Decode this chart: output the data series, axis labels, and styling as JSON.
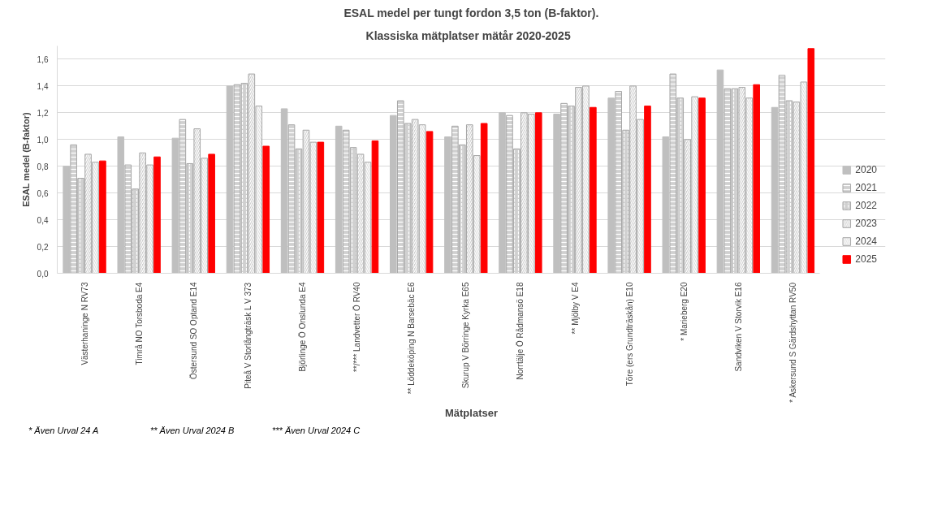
{
  "chart_data": {
    "type": "bar",
    "title": "ESAL medel per tungt fordon 3,5 ton (B-faktor).",
    "subtitle": "Klassiska  mätplatser  mätår 2020-2025",
    "xlabel": "Mätplatser",
    "ylabel": "ESAL medel (B-faktor)",
    "categories": [
      "Västerhaninge N RV73",
      "Timrå NO Torsboda E4",
      "Östersund SO Optand E14",
      "Piteå V Storlångträsk L V 373",
      "Björlinge Ö Onslunda E4",
      "**/*** Landvetter Ö RV40",
      "** Löddeköping N Barsebäc E6",
      "Skurup V Börringe Kyrka E65",
      "Norrtälje Ö Rådmansö E18",
      "** Mjölby V E4",
      "Töre (ers Grundträskån) E10",
      "* Marieberg E20",
      "Sandviken V Storvik E16",
      "* Askersund S Gärdshyttan RV50"
    ],
    "series": [
      {
        "name": "2020",
        "color": "#bfbfbf",
        "values": [
          0.8,
          1.02,
          1.01,
          1.4,
          1.23,
          1.1,
          1.18,
          1.02,
          1.2,
          1.19,
          1.31,
          1.02,
          1.52,
          1.24
        ]
      },
      {
        "name": "2021",
        "color": "#d0d0d0",
        "values": [
          0.96,
          0.81,
          1.15,
          1.41,
          1.11,
          1.07,
          1.29,
          1.1,
          1.18,
          1.27,
          1.36,
          1.49,
          1.38,
          1.48
        ]
      },
      {
        "name": "2022",
        "color": "#d0d0d0",
        "values": [
          0.71,
          0.63,
          0.82,
          1.42,
          0.93,
          0.94,
          1.12,
          0.96,
          0.93,
          1.25,
          1.07,
          1.31,
          1.38,
          1.29
        ]
      },
      {
        "name": "2023",
        "color": "#d0d0d0",
        "values": [
          0.89,
          0.9,
          1.08,
          1.49,
          1.07,
          0.89,
          1.15,
          1.11,
          1.2,
          1.39,
          1.4,
          1.0,
          1.39,
          1.28
        ]
      },
      {
        "name": "2024",
        "color": "#dcdcdc",
        "values": [
          0.83,
          0.81,
          0.86,
          1.25,
          0.98,
          0.83,
          1.11,
          0.88,
          1.19,
          1.4,
          1.15,
          1.32,
          1.31,
          1.43
        ]
      },
      {
        "name": "2025",
        "color": "#ff0000",
        "values": [
          0.84,
          0.87,
          0.89,
          0.95,
          0.98,
          0.99,
          1.06,
          1.12,
          1.2,
          1.24,
          1.25,
          1.31,
          1.41,
          1.68
        ]
      }
    ],
    "ylim": [
      0,
      1.7
    ],
    "yticks": [
      {
        "value": 0,
        "label": "0,0"
      },
      {
        "value": 0.2,
        "label": "0,2"
      },
      {
        "value": 0.4,
        "label": "0,4"
      },
      {
        "value": 0.6,
        "label": "0,6"
      },
      {
        "value": 0.8,
        "label": "0,8"
      },
      {
        "value": 1.0,
        "label": "1,0"
      },
      {
        "value": 1.2,
        "label": "1,2"
      },
      {
        "value": 1.4,
        "label": "1,4"
      },
      {
        "value": 1.6,
        "label": "1,6"
      }
    ],
    "grid": "y",
    "legend": "right",
    "annotations": [
      "* Även Urval 24 A",
      "** Även Urval 2024 B",
      "*** Även Urval 2024 C"
    ]
  }
}
